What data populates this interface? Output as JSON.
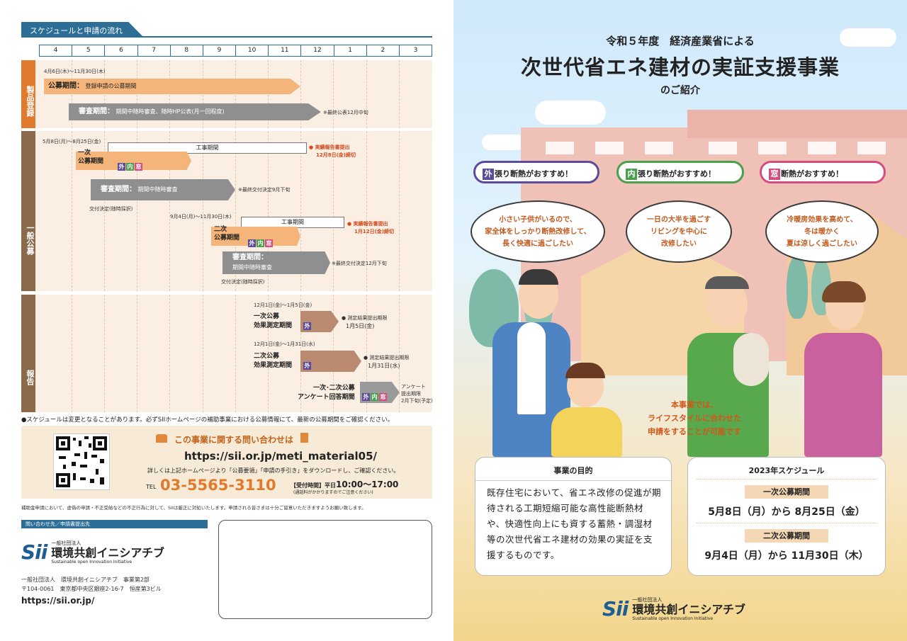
{
  "left": {
    "header": "スケジュールと申請の流れ",
    "months": [
      "4",
      "5",
      "6",
      "7",
      "8",
      "9",
      "10",
      "11",
      "12",
      "1",
      "2",
      "3"
    ],
    "sections": {
      "product": "製品登録",
      "general": "一般公募",
      "report": "報告"
    },
    "product": {
      "date": "4月6日(木)～11月30日(木)",
      "period_label": "公募期間：",
      "period_text": "登録申請の公募期間",
      "review_label": "審査期間：",
      "review_text": "期間中随時審査、随時HP公表(月一回程度)",
      "note": "※最終公表12月中旬"
    },
    "general": {
      "date1": "5月8日(月)～8月25日(金)",
      "work": "工事期間",
      "first_label": "一次\n公募期間",
      "report1a": "● 実績報告書提出",
      "report1b": "12月8日(金)締切",
      "review1_label": "審査期間：",
      "review1_text": "期間中随時審査",
      "note1": "※最終交付決定9月下旬",
      "decision1": "交付決定(随時採択)",
      "date2": "9月4日(月)～11月30日(木)",
      "second_label": "二次\n公募期間",
      "report2a": "● 実績報告書提出",
      "report2b": "1月12日(金)締切",
      "review2_label": "審査期間：",
      "review2_text": "期間中随時審査",
      "note2": "※最終交付決定12月下旬",
      "decision2": "交付決定(随時採択)"
    },
    "report": {
      "date1": "12月1日(金)～1月5日(金)",
      "label1": "一次公募\n効果測定期間",
      "result1a": "● 測定結果提出期限",
      "result1b": "1月5日(金)",
      "date2": "12月1日(金)～1月31日(水)",
      "label2": "二次公募\n効果測定期間",
      "result2a": "● 測定結果提出期限",
      "result2b": "1月31日(水)",
      "label3": "一次･二次公募\nアンケート回答期間",
      "result3a": "アンケート",
      "result3b": "提出期限",
      "result3c": "2月下旬(予定)"
    },
    "tags": {
      "outer": "外",
      "inner": "内",
      "window": "窓"
    },
    "notice": "●スケジュールは変更となることがあります。必ずSIIホームページの補助事業における公募情報にて、最新の公募期間をご確認ください。",
    "contact": {
      "title": "この事業に関する問い合わせは",
      "url": "https://sii.or.jp/meti_material05/",
      "detail": "詳しくは上記ホームページより「公募要領」「申請の手引き」をダウンロードし、ご確認ください。",
      "tel_label": "TEL",
      "tel": "03-5565-3110",
      "hours_label": "【受付時間】平日",
      "hours": "10:00～17:00",
      "hours_note": "(通話料がかかりますのでご注意ください)"
    },
    "warning": "補助金申請において、虚偽の申請・不正受給などの不正行為に対して、SIIは厳正に対処いたします。申請される皆さまは十分ご留意いただきますようお願い致します。",
    "addr_head": "問い合わせ先／申請書提出先",
    "org_small": "一般社団法人",
    "org_name": "環境共創イニシアチブ",
    "org_en": "Sustainable open Innovation Initiative",
    "org_logo": "Sii",
    "addr1": "一般社団法人　環境共創イニシアチブ　事業第2部",
    "addr2": "〒104-0061　東京都中央区銀座2-16-7　恒産第3ビル",
    "site": "https://sii.or.jp/"
  },
  "right": {
    "subtitle": "令和５年度　経済産業省による",
    "title": "次世代省エネ建材の実証支援事業",
    "intro": "のご紹介",
    "badges": [
      {
        "tag": "外",
        "text": "張り断熱がおすすめ！",
        "color": "#5c4a9a"
      },
      {
        "tag": "内",
        "text": "張り断熱がおすすめ！",
        "color": "#4aa04c"
      },
      {
        "tag": "窓",
        "text": "断熱がおすすめ！",
        "color": "#d44d80"
      }
    ],
    "bubbles": [
      {
        "l1": "小さい子供がいるので、",
        "l2": "家全体をしっかり断熱改修して、",
        "l3": "長く快適に過ごしたい"
      },
      {
        "l1": "一日の大半を過ごす",
        "l2": "リビングを中心に",
        "l3": "改修したい"
      },
      {
        "l1": "冷暖房効果を高めて、",
        "l2": "冬は暖かく",
        "l3": "夏は涼しく過ごしたい"
      }
    ],
    "catch1": "本事業では、",
    "catch2": "ライフスタイルに合わせた",
    "catch3": "申請をすることが可能です",
    "purpose_title": "事業の目的",
    "purpose_text": "既存住宅において、省エネ改修の促進が期待される工期短縮可能な高性能断熱材や、快適性向上にも資する蓄熱・調湿材等の次世代省エネ建材の効果の実証を支援するものです。",
    "schedule_title": "2023年スケジュール",
    "first_title": "一次公募期間",
    "first_date": "5月8日（月）から 8月25日（金）",
    "second_title": "二次公募期間",
    "second_date": "9月4日（月）から 11月30日（木）",
    "org_small": "一般社団法人",
    "org_name": "環境共創イニシアチブ",
    "org_en": "Sustainable open Innovation Initiative",
    "org_logo": "Sii"
  }
}
